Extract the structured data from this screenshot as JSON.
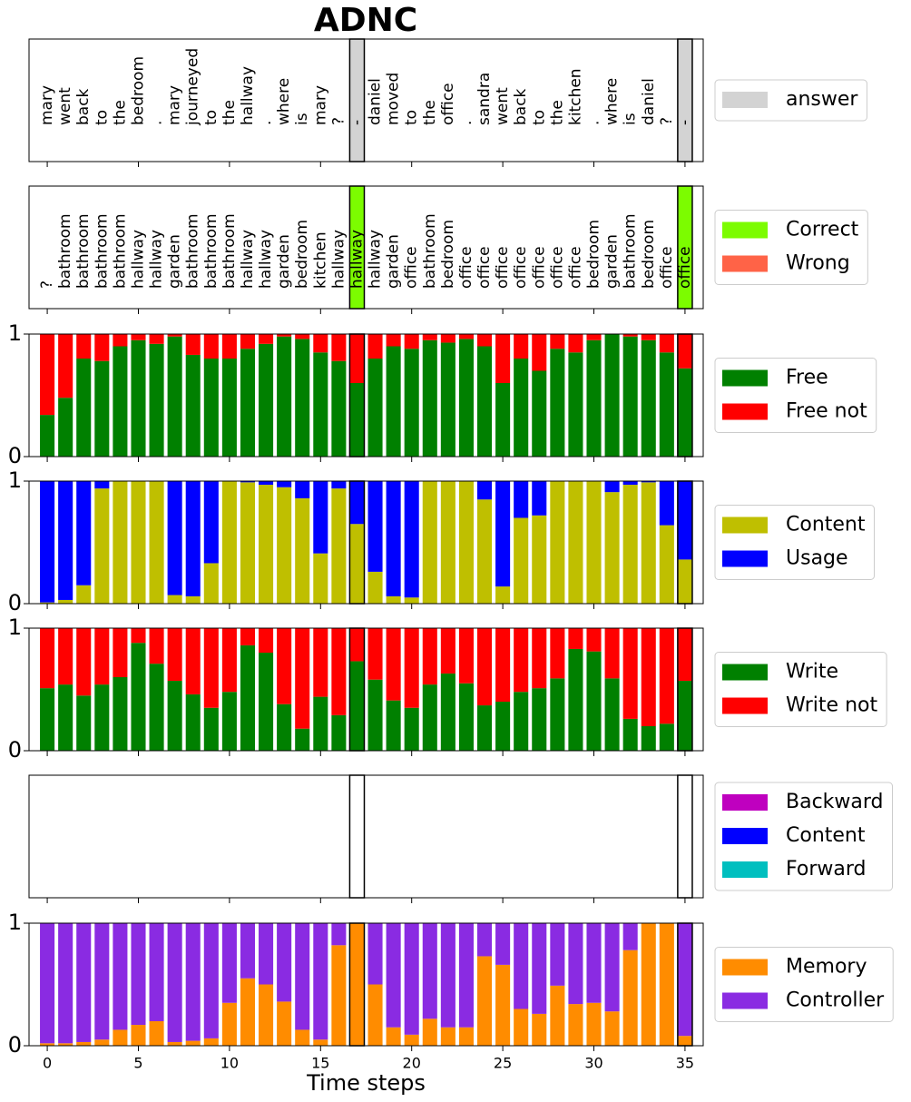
{
  "chart_data": [
    {
      "type": "text",
      "title": "ADNC",
      "tokens": [
        "mary",
        "went",
        "back",
        "to",
        "the",
        "bedroom",
        ".",
        "mary",
        "journeyed",
        "to",
        "the",
        "hallway",
        ".",
        "where",
        "is",
        "mary",
        "?",
        "-",
        "daniel",
        "moved",
        "to",
        "the",
        "office",
        ".",
        "sandra",
        "went",
        "back",
        "to",
        "the",
        "kitchen",
        ".",
        "where",
        "is",
        "daniel",
        "?",
        "-"
      ],
      "answer_steps": [
        17,
        35
      ],
      "legend": [
        {
          "name": "answer",
          "color": "#d3d3d3"
        }
      ]
    },
    {
      "type": "text",
      "tokens": [
        "?",
        "bathroom",
        "bathroom",
        "bathroom",
        "bathroom",
        "hallway",
        "hallway",
        "garden",
        "bathroom",
        "bathroom",
        "bathroom",
        "hallway",
        "hallway",
        "garden",
        "bedroom",
        "kitchen",
        "hallway",
        "hallway",
        "hallway",
        "garden",
        "office",
        "bathroom",
        "bedroom",
        "office",
        "office",
        "office",
        "office",
        "office",
        "office",
        "office",
        "bedroom",
        "garden",
        "bathroom",
        "bedroom",
        "office",
        "office"
      ],
      "answer_steps": [
        17,
        35
      ],
      "legend": [
        {
          "name": "Correct",
          "color": "#7cfc00"
        },
        {
          "name": "Wrong",
          "color": "#ff6347"
        }
      ]
    },
    {
      "type": "bar",
      "ylim": [
        0,
        1
      ],
      "yticks": [
        0,
        1
      ],
      "series": [
        {
          "name": "Free",
          "color": "#008000",
          "values": [
            0.34,
            0.48,
            0.8,
            0.78,
            0.9,
            0.95,
            0.92,
            0.98,
            0.83,
            0.8,
            0.8,
            0.88,
            0.92,
            0.98,
            0.96,
            0.85,
            0.78,
            0.6,
            0.8,
            0.9,
            0.88,
            0.95,
            0.93,
            0.96,
            0.9,
            0.6,
            0.8,
            0.7,
            0.88,
            0.85,
            0.95,
            1.0,
            0.98,
            0.95,
            0.85,
            0.72
          ]
        },
        {
          "name": "Free not",
          "color": "#ff0000",
          "values": [
            0.66,
            0.52,
            0.2,
            0.22,
            0.1,
            0.05,
            0.08,
            0.02,
            0.17,
            0.2,
            0.2,
            0.12,
            0.08,
            0.02,
            0.04,
            0.15,
            0.22,
            0.4,
            0.2,
            0.1,
            0.12,
            0.05,
            0.07,
            0.04,
            0.1,
            0.4,
            0.2,
            0.3,
            0.12,
            0.15,
            0.05,
            0.0,
            0.02,
            0.05,
            0.15,
            0.28
          ]
        }
      ]
    },
    {
      "type": "bar",
      "ylim": [
        0,
        1
      ],
      "yticks": [
        0,
        1
      ],
      "series": [
        {
          "name": "Content",
          "color": "#bfbf00",
          "values": [
            0.01,
            0.03,
            0.15,
            0.94,
            1.0,
            1.0,
            1.0,
            0.07,
            0.06,
            0.33,
            1.0,
            0.99,
            0.97,
            0.95,
            0.86,
            0.41,
            0.94,
            0.65,
            0.26,
            0.06,
            0.05,
            1.0,
            1.0,
            1.0,
            0.85,
            0.14,
            0.7,
            0.72,
            1.0,
            1.0,
            1.0,
            0.91,
            0.97,
            0.99,
            0.64,
            0.36
          ]
        },
        {
          "name": "Usage",
          "color": "#0000ff",
          "values": [
            0.99,
            0.97,
            0.85,
            0.06,
            0.0,
            0.0,
            0.0,
            0.93,
            0.94,
            0.67,
            0.0,
            0.01,
            0.03,
            0.05,
            0.14,
            0.59,
            0.06,
            0.35,
            0.74,
            0.94,
            0.95,
            0.0,
            0.0,
            0.0,
            0.15,
            0.86,
            0.3,
            0.28,
            0.0,
            0.0,
            0.0,
            0.09,
            0.03,
            0.01,
            0.36,
            0.64
          ]
        }
      ]
    },
    {
      "type": "bar",
      "ylim": [
        0,
        1
      ],
      "yticks": [
        0,
        1
      ],
      "series": [
        {
          "name": "Write",
          "color": "#008000",
          "values": [
            0.51,
            0.54,
            0.45,
            0.54,
            0.6,
            0.88,
            0.71,
            0.57,
            0.46,
            0.35,
            0.48,
            0.86,
            0.8,
            0.38,
            0.18,
            0.44,
            0.29,
            0.73,
            0.58,
            0.41,
            0.35,
            0.54,
            0.63,
            0.55,
            0.37,
            0.4,
            0.48,
            0.51,
            0.59,
            0.83,
            0.81,
            0.59,
            0.26,
            0.2,
            0.22,
            0.57
          ]
        },
        {
          "name": "Write not",
          "color": "#ff0000",
          "values": [
            0.49,
            0.46,
            0.55,
            0.46,
            0.4,
            0.12,
            0.29,
            0.43,
            0.54,
            0.65,
            0.52,
            0.14,
            0.2,
            0.62,
            0.82,
            0.56,
            0.71,
            0.27,
            0.42,
            0.59,
            0.65,
            0.46,
            0.37,
            0.45,
            0.63,
            0.6,
            0.52,
            0.49,
            0.41,
            0.17,
            0.19,
            0.41,
            0.74,
            0.8,
            0.78,
            0.43
          ]
        }
      ]
    },
    {
      "type": "bar",
      "series": [
        {
          "name": "Backward",
          "color": "#bf00bf"
        },
        {
          "name": "Content",
          "color": "#0000ff"
        },
        {
          "name": "Forward",
          "color": "#00bfbf"
        }
      ]
    },
    {
      "type": "bar",
      "ylim": [
        0,
        1
      ],
      "yticks": [
        0,
        1
      ],
      "xlim": [
        -1,
        36
      ],
      "xticks": [
        0,
        5,
        10,
        15,
        20,
        25,
        30,
        35
      ],
      "xlabel": "Time steps",
      "series": [
        {
          "name": "Memory",
          "color": "#ff8c00",
          "values": [
            0.02,
            0.02,
            0.03,
            0.05,
            0.13,
            0.17,
            0.2,
            0.03,
            0.04,
            0.06,
            0.35,
            0.55,
            0.5,
            0.36,
            0.13,
            0.05,
            0.82,
            1.0,
            0.5,
            0.15,
            0.09,
            0.22,
            0.15,
            0.15,
            0.73,
            0.66,
            0.3,
            0.26,
            0.49,
            0.34,
            0.35,
            0.28,
            0.78,
            1.0,
            1.0,
            0.08
          ]
        },
        {
          "name": "Controller",
          "color": "#8a2be2",
          "values": [
            0.98,
            0.98,
            0.97,
            0.95,
            0.87,
            0.83,
            0.8,
            0.97,
            0.96,
            0.94,
            0.65,
            0.45,
            0.5,
            0.64,
            0.87,
            0.95,
            0.18,
            0.0,
            0.5,
            0.85,
            0.91,
            0.78,
            0.85,
            0.85,
            0.27,
            0.34,
            0.7,
            0.74,
            0.51,
            0.66,
            0.65,
            0.72,
            0.22,
            0.0,
            0.0,
            0.92
          ]
        }
      ]
    }
  ]
}
